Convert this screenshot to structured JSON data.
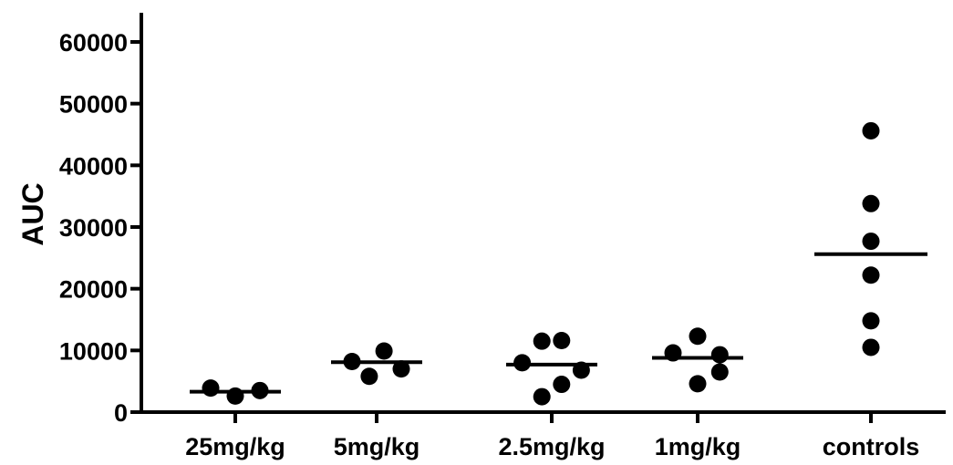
{
  "chart_data": {
    "type": "scatter",
    "subtype": "dot-plot-with-mean",
    "title": "",
    "xlabel": "",
    "ylabel": "AUC",
    "ylim": [
      0,
      65000
    ],
    "yticks": [
      0,
      10000,
      20000,
      30000,
      40000,
      50000,
      60000
    ],
    "ytick_labels": [
      "0",
      "10000",
      "20000",
      "30000",
      "40000",
      "50000",
      "60000"
    ],
    "grid": false,
    "legend": "none",
    "categories": [
      "25mg/kg",
      "5mg/kg",
      "2.5mg/kg",
      "1mg/kg",
      "controls"
    ],
    "groups": [
      {
        "category": "25mg/kg",
        "mean": 3300,
        "points": [
          {
            "offset": -1,
            "y": 3900
          },
          {
            "offset": 0,
            "y": 2600
          },
          {
            "offset": 1,
            "y": 3500
          }
        ]
      },
      {
        "category": "5mg/kg",
        "mean": 8100,
        "points": [
          {
            "offset": -1,
            "y": 8200
          },
          {
            "offset": -0.3,
            "y": 5800
          },
          {
            "offset": 0.3,
            "y": 9900
          },
          {
            "offset": 1,
            "y": 7000
          }
        ]
      },
      {
        "category": "2.5mg/kg",
        "mean": 7700,
        "points": [
          {
            "offset": -1.2,
            "y": 8000
          },
          {
            "offset": -0.4,
            "y": 11500
          },
          {
            "offset": -0.4,
            "y": 2500
          },
          {
            "offset": 0.4,
            "y": 11600
          },
          {
            "offset": 0.4,
            "y": 4500
          },
          {
            "offset": 1.2,
            "y": 6800
          }
        ]
      },
      {
        "category": "1mg/kg",
        "mean": 8800,
        "points": [
          {
            "offset": -1,
            "y": 9600
          },
          {
            "offset": 0,
            "y": 12300
          },
          {
            "offset": 0,
            "y": 4600
          },
          {
            "offset": 0.9,
            "y": 9300
          },
          {
            "offset": 0.9,
            "y": 6500
          }
        ]
      },
      {
        "category": "controls",
        "mean": 25600,
        "points": [
          {
            "offset": 0,
            "y": 45600
          },
          {
            "offset": 0,
            "y": 33800
          },
          {
            "offset": 0,
            "y": 27700
          },
          {
            "offset": 0,
            "y": 22200
          },
          {
            "offset": 0,
            "y": 14800
          },
          {
            "offset": 0,
            "y": 10500
          }
        ]
      }
    ]
  }
}
